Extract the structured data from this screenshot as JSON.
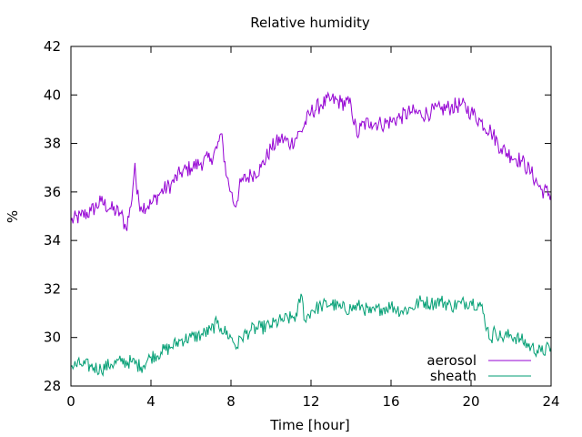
{
  "chart_data": {
    "type": "line",
    "title": "Relative humidity",
    "xlabel": "Time [hour]",
    "ylabel": "%",
    "xlim": [
      0,
      24
    ],
    "ylim": [
      28,
      42
    ],
    "xticks": [
      0,
      4,
      8,
      12,
      16,
      20,
      24
    ],
    "yticks": [
      28,
      30,
      32,
      34,
      36,
      38,
      40,
      42
    ],
    "grid": false,
    "legend_position": "bottom-right",
    "series": [
      {
        "name": "aerosol",
        "color": "#9400d3",
        "x": [
          0,
          0.5,
          1,
          1.5,
          2,
          2.5,
          2.75,
          3,
          3.2,
          3.3,
          3.5,
          4,
          4.5,
          5,
          5.5,
          6,
          6.5,
          7,
          7.3,
          7.5,
          7.8,
          8,
          8.2,
          8.5,
          9,
          9.5,
          10,
          10.5,
          11,
          11.5,
          12,
          12.5,
          13,
          13.5,
          14,
          14.3,
          14.5,
          15,
          15.5,
          16,
          16.5,
          17,
          17.5,
          18,
          18.5,
          19,
          19.5,
          20,
          20.5,
          21,
          21.5,
          22,
          22.5,
          23,
          23.5,
          24
        ],
        "values": [
          34.8,
          35.0,
          35.2,
          35.6,
          35.3,
          35.1,
          34.5,
          35.4,
          37.2,
          35.9,
          35.4,
          35.5,
          36.0,
          36.3,
          36.8,
          37.0,
          37.2,
          37.4,
          37.8,
          38.4,
          36.6,
          36.0,
          35.4,
          36.4,
          36.7,
          37.0,
          37.8,
          38.2,
          38.0,
          38.5,
          39.3,
          39.6,
          39.8,
          39.7,
          39.6,
          38.3,
          38.7,
          38.9,
          38.8,
          38.9,
          39.1,
          39.3,
          39.2,
          39.3,
          39.4,
          39.5,
          39.6,
          39.3,
          38.9,
          38.5,
          37.8,
          37.5,
          37.3,
          36.8,
          36.1,
          35.9
        ]
      },
      {
        "name": "sheath",
        "color": "#009e73",
        "x": [
          0,
          0.5,
          1,
          1.5,
          2,
          2.5,
          3,
          3.5,
          4,
          4.5,
          5,
          5.5,
          6,
          6.5,
          7,
          7.3,
          7.5,
          8,
          8.3,
          8.5,
          9,
          9.5,
          10,
          10.5,
          11,
          11.3,
          11.5,
          11.7,
          12,
          12.5,
          13,
          13.5,
          14,
          14.5,
          15,
          15.5,
          16,
          16.5,
          17,
          17.5,
          18,
          18.5,
          19,
          19.5,
          20,
          20.5,
          20.8,
          21,
          21.2,
          21.5,
          22,
          22.5,
          23,
          23.5,
          24
        ],
        "values": [
          28.8,
          28.9,
          28.8,
          28.7,
          28.9,
          29.0,
          29.0,
          28.8,
          29.2,
          29.4,
          29.6,
          29.9,
          30.0,
          30.1,
          30.3,
          30.6,
          30.4,
          30.0,
          29.6,
          30.0,
          30.3,
          30.4,
          30.5,
          30.7,
          30.8,
          30.9,
          31.8,
          30.7,
          31.1,
          31.3,
          31.4,
          31.2,
          31.2,
          31.3,
          31.0,
          31.2,
          31.3,
          31.1,
          31.2,
          31.5,
          31.4,
          31.5,
          31.3,
          31.4,
          31.5,
          31.3,
          30.4,
          29.9,
          30.3,
          30.0,
          30.1,
          29.9,
          29.6,
          29.4,
          29.6
        ]
      }
    ]
  }
}
